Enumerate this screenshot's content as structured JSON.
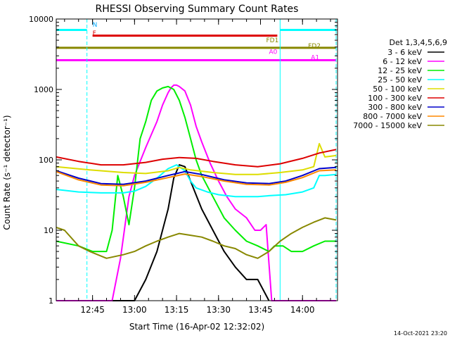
{
  "chart_data": {
    "type": "line",
    "title": "RHESSI Observing Summary Count Rates",
    "xlabel": "Start Time (16-Apr-02 12:32:02)",
    "ylabel": "Count Rate (s⁻¹ detector⁻¹)",
    "y_scale": "log",
    "ylim": [
      1,
      10000
    ],
    "xlim": [
      "12:32:02",
      "14:12:30"
    ],
    "x_ticks": [
      "12:45",
      "13:00",
      "13:15",
      "13:30",
      "13:45",
      "14:00"
    ],
    "y_ticks": [
      "1",
      "10",
      "100",
      "1000",
      "10000"
    ],
    "footer_date": "14-Oct-2021 23:20",
    "legend_title": "Det 1,3,4,5,6,9",
    "legend_placement": "right",
    "colors": {
      "3-6": "#000000",
      "6-12": "#ff00ff",
      "12-25": "#00ee00",
      "25-50": "#00ffff",
      "50-100": "#dddd00",
      "100-300": "#dd0000",
      "300-800": "#0000cc",
      "800-7000": "#ff8800",
      "7000-15000": "#888800"
    },
    "series": [
      {
        "key": "3-6",
        "name": "3 - 6 keV",
        "x": [
          "12:48",
          "12:56",
          "12:58",
          "13:00",
          "13:04",
          "13:08",
          "13:12",
          "13:14",
          "13:16",
          "13:18",
          "13:20",
          "13:24",
          "13:28",
          "13:32",
          "13:36",
          "13:40",
          "13:44",
          "13:48"
        ],
        "y": [
          1,
          1,
          1,
          1,
          2,
          5,
          20,
          55,
          85,
          80,
          50,
          20,
          10,
          5,
          3,
          2,
          2,
          1
        ]
      },
      {
        "key": "6-12",
        "name": "6 - 12 keV",
        "x": [
          "12:32",
          "12:40",
          "12:44",
          "12:48",
          "12:52",
          "12:55",
          "12:58",
          "13:00",
          "13:04",
          "13:08",
          "13:10",
          "13:12",
          "13:13",
          "13:14",
          "13:15",
          "13:16",
          "13:18",
          "13:20",
          "13:22",
          "13:24",
          "13:27",
          "13:30",
          "13:33",
          "13:36",
          "13:40",
          "13:43",
          "13:45",
          "13:47",
          "13:49",
          "13:53",
          "13:56",
          "14:00",
          "14:04",
          "14:07",
          "14:12"
        ],
        "y": [
          1,
          1,
          1,
          1,
          1,
          4,
          30,
          60,
          150,
          350,
          600,
          900,
          1050,
          1150,
          1150,
          1100,
          950,
          600,
          300,
          180,
          90,
          50,
          30,
          20,
          15,
          10,
          10,
          12,
          1,
          1,
          1,
          1,
          1,
          1,
          1
        ]
      },
      {
        "key": "12-25",
        "name": "12 - 25 keV",
        "x": [
          "12:32",
          "12:40",
          "12:45",
          "12:50",
          "12:52",
          "12:54",
          "12:56",
          "12:58",
          "13:00",
          "13:02",
          "13:04",
          "13:06",
          "13:08",
          "13:10",
          "13:12",
          "13:14",
          "13:16",
          "13:18",
          "13:20",
          "13:22",
          "13:24",
          "13:28",
          "13:32",
          "13:36",
          "13:40",
          "13:44",
          "13:48",
          "13:50",
          "13:53",
          "13:56",
          "14:00",
          "14:04",
          "14:08",
          "14:12"
        ],
        "y": [
          7,
          6,
          5,
          5,
          10,
          60,
          30,
          12,
          40,
          200,
          350,
          700,
          950,
          1050,
          1100,
          1000,
          700,
          400,
          200,
          100,
          60,
          30,
          15,
          10,
          7,
          6,
          5,
          6,
          6,
          5,
          5,
          6,
          7,
          7
        ]
      },
      {
        "key": "25-50",
        "name": "25 - 50 keV",
        "x": [
          "12:32",
          "12:40",
          "12:48",
          "12:56",
          "13:00",
          "13:04",
          "13:08",
          "13:12",
          "13:15",
          "13:18",
          "13:20",
          "13:22",
          "13:26",
          "13:30",
          "13:36",
          "13:44",
          "13:48",
          "13:54",
          "14:00",
          "14:04",
          "14:06",
          "14:08",
          "14:12"
        ],
        "y": [
          38,
          35,
          34,
          34,
          36,
          42,
          55,
          75,
          85,
          70,
          50,
          40,
          35,
          32,
          30,
          30,
          31,
          32,
          35,
          40,
          60,
          60,
          62
        ]
      },
      {
        "key": "50-100",
        "name": "50 - 100 keV",
        "x": [
          "12:32",
          "12:44",
          "12:56",
          "13:04",
          "13:12",
          "13:16",
          "13:20",
          "13:28",
          "13:36",
          "13:44",
          "13:52",
          "14:00",
          "14:04",
          "14:06",
          "14:08",
          "14:12"
        ],
        "y": [
          80,
          72,
          66,
          64,
          70,
          78,
          72,
          66,
          62,
          62,
          66,
          72,
          80,
          170,
          110,
          115
        ]
      },
      {
        "key": "100-300",
        "name": "100 - 300 keV",
        "x": [
          "12:32",
          "12:40",
          "12:48",
          "12:56",
          "13:04",
          "13:10",
          "13:16",
          "13:22",
          "13:28",
          "13:36",
          "13:44",
          "13:52",
          "14:00",
          "14:06",
          "14:12"
        ],
        "y": [
          110,
          95,
          85,
          85,
          92,
          102,
          108,
          105,
          95,
          85,
          80,
          88,
          105,
          125,
          140
        ]
      },
      {
        "key": "300-800",
        "name": "300 - 800 keV",
        "x": [
          "12:32",
          "12:40",
          "12:48",
          "12:56",
          "13:04",
          "13:12",
          "13:18",
          "13:24",
          "13:32",
          "13:40",
          "13:48",
          "13:54",
          "14:00",
          "14:06",
          "14:12"
        ],
        "y": [
          70,
          55,
          46,
          45,
          50,
          60,
          68,
          62,
          52,
          47,
          46,
          50,
          60,
          75,
          78
        ]
      },
      {
        "key": "800-7000",
        "name": "800 - 7000 keV",
        "x": [
          "12:32",
          "12:40",
          "12:48",
          "12:56",
          "13:04",
          "13:12",
          "13:18",
          "13:24",
          "13:32",
          "13:40",
          "13:48",
          "13:54",
          "14:00",
          "14:06",
          "14:12"
        ],
        "y": [
          68,
          52,
          44,
          43,
          48,
          56,
          63,
          58,
          50,
          45,
          44,
          48,
          56,
          70,
          72
        ]
      },
      {
        "key": "7000-15000",
        "name": "7000 - 15000 keV",
        "x": [
          "12:32",
          "12:35",
          "12:40",
          "12:44",
          "12:50",
          "12:56",
          "13:00",
          "13:04",
          "13:08",
          "13:12",
          "13:16",
          "13:20",
          "13:24",
          "13:28",
          "13:32",
          "13:36",
          "13:40",
          "13:44",
          "13:48",
          "13:52",
          "13:56",
          "14:00",
          "14:04",
          "14:08",
          "14:12"
        ],
        "y": [
          11,
          10,
          6,
          5,
          4,
          4.5,
          5,
          6,
          7,
          8,
          9,
          8.5,
          8,
          7,
          6,
          5.5,
          4.5,
          4,
          5,
          7,
          9,
          11,
          13,
          15,
          14
        ]
      }
    ],
    "flag_bars": [
      {
        "key": "N",
        "label": "N",
        "color": "#00ffff",
        "y": 7000,
        "segments": [
          [
            "12:32",
            "12:43"
          ],
          [
            "13:52",
            "14:12"
          ]
        ]
      },
      {
        "key": "F",
        "label": "F",
        "color": "#dd0000",
        "y": 5800,
        "segments": [
          [
            "12:45",
            "13:51"
          ]
        ]
      },
      {
        "key": "FD1",
        "label": "FD1",
        "color": "#888800",
        "y": 3900,
        "segments": [
          [
            "12:32",
            "14:12"
          ]
        ]
      },
      {
        "key": "A0",
        "label": "A0",
        "color": "#ff00ff",
        "y": 2600,
        "segments": [
          [
            "12:32",
            "14:12"
          ]
        ]
      }
    ],
    "flag_labels": [
      {
        "text": "N",
        "color": "#00aaff",
        "x": "12:45",
        "y": 7800
      },
      {
        "text": "F",
        "color": "#dd0000",
        "x": "12:45",
        "y": 5900
      },
      {
        "text": "FD1",
        "color": "#888800",
        "x": "13:47",
        "y": 4700
      },
      {
        "text": "FD2",
        "color": "#888800",
        "x": "14:02",
        "y": 3900
      },
      {
        "text": "A0",
        "color": "#ff00ff",
        "x": "13:48",
        "y": 3200
      },
      {
        "text": "A1",
        "color": "#ff00ff",
        "x": "14:03",
        "y": 2650
      }
    ],
    "vertical_markers": [
      {
        "x": "12:32:02",
        "color": "#00ffff",
        "style": "solid"
      },
      {
        "x": "12:43",
        "color": "#00ffff",
        "style": "dashed"
      },
      {
        "x": "13:52",
        "color": "#00ffff",
        "style": "solid"
      },
      {
        "x": "14:12",
        "color": "#00ffff",
        "style": "dashed"
      }
    ]
  }
}
